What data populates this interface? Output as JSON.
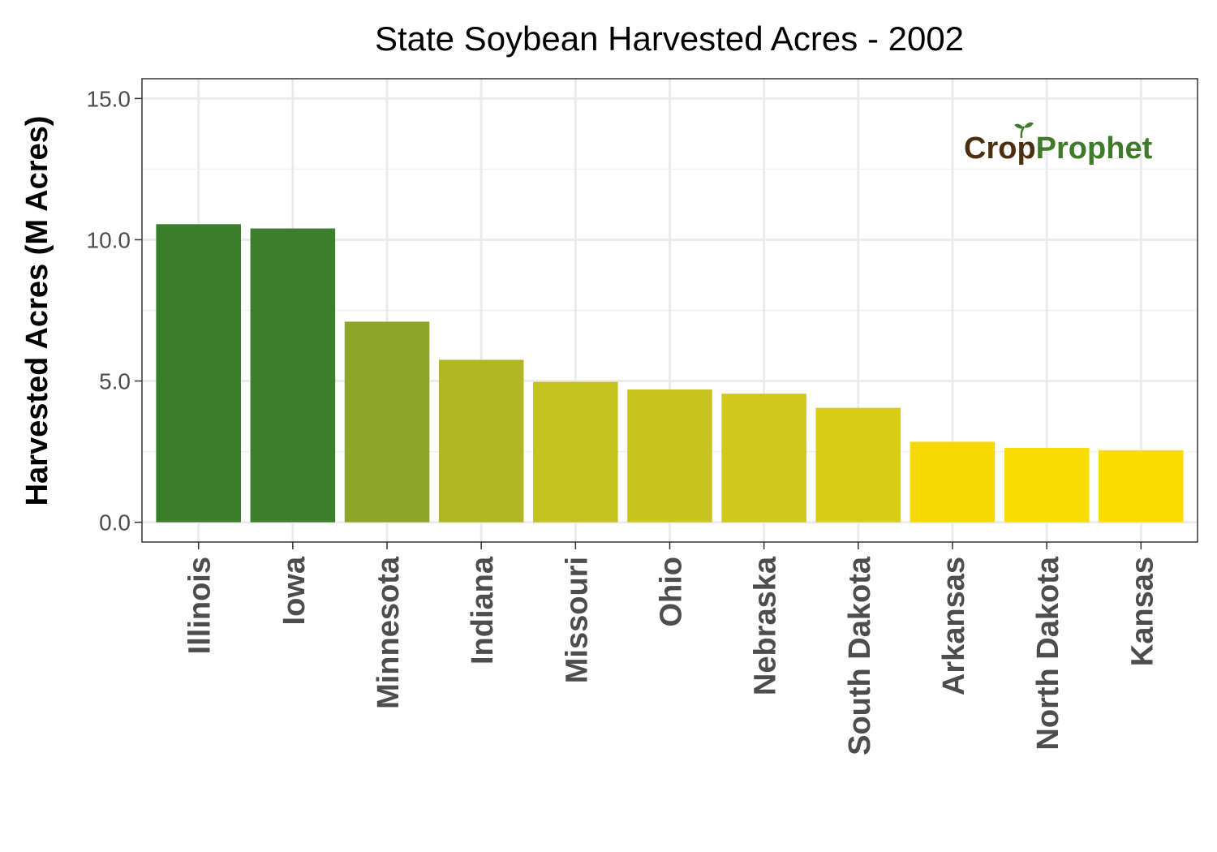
{
  "chart_data": {
    "type": "bar",
    "title": "State Soybean Harvested Acres - 2002",
    "xlabel": "",
    "ylabel": "Harvested Acres (M Acres)",
    "ylim": [
      -0.7,
      15.7
    ],
    "yticks": [
      0,
      5,
      10,
      15
    ],
    "ytick_labels": [
      "0.0",
      "5.0",
      "10.0",
      "15.0"
    ],
    "grid": true,
    "legend": "none",
    "categories": [
      "Illinois",
      "Iowa",
      "Minnesota",
      "Indiana",
      "Missouri",
      "Ohio",
      "Nebraska",
      "South Dakota",
      "Arkansas",
      "North Dakota",
      "Kansas"
    ],
    "values": [
      10.55,
      10.4,
      7.1,
      5.75,
      4.97,
      4.7,
      4.55,
      4.05,
      2.85,
      2.63,
      2.55
    ],
    "colors": [
      "#3a7d2c",
      "#3d7e2d",
      "#8fa62a",
      "#b1b723",
      "#c4c21f",
      "#cac41e",
      "#d0c81c",
      "#d8cc19",
      "#f5d905",
      "#f8dc03",
      "#fbdd01"
    ]
  },
  "logo": {
    "text_part1": "Cr",
    "text_part2": "p",
    "text_part3": "Prophet",
    "color_dark": "#4a3010",
    "color_green": "#3d7a2a"
  }
}
